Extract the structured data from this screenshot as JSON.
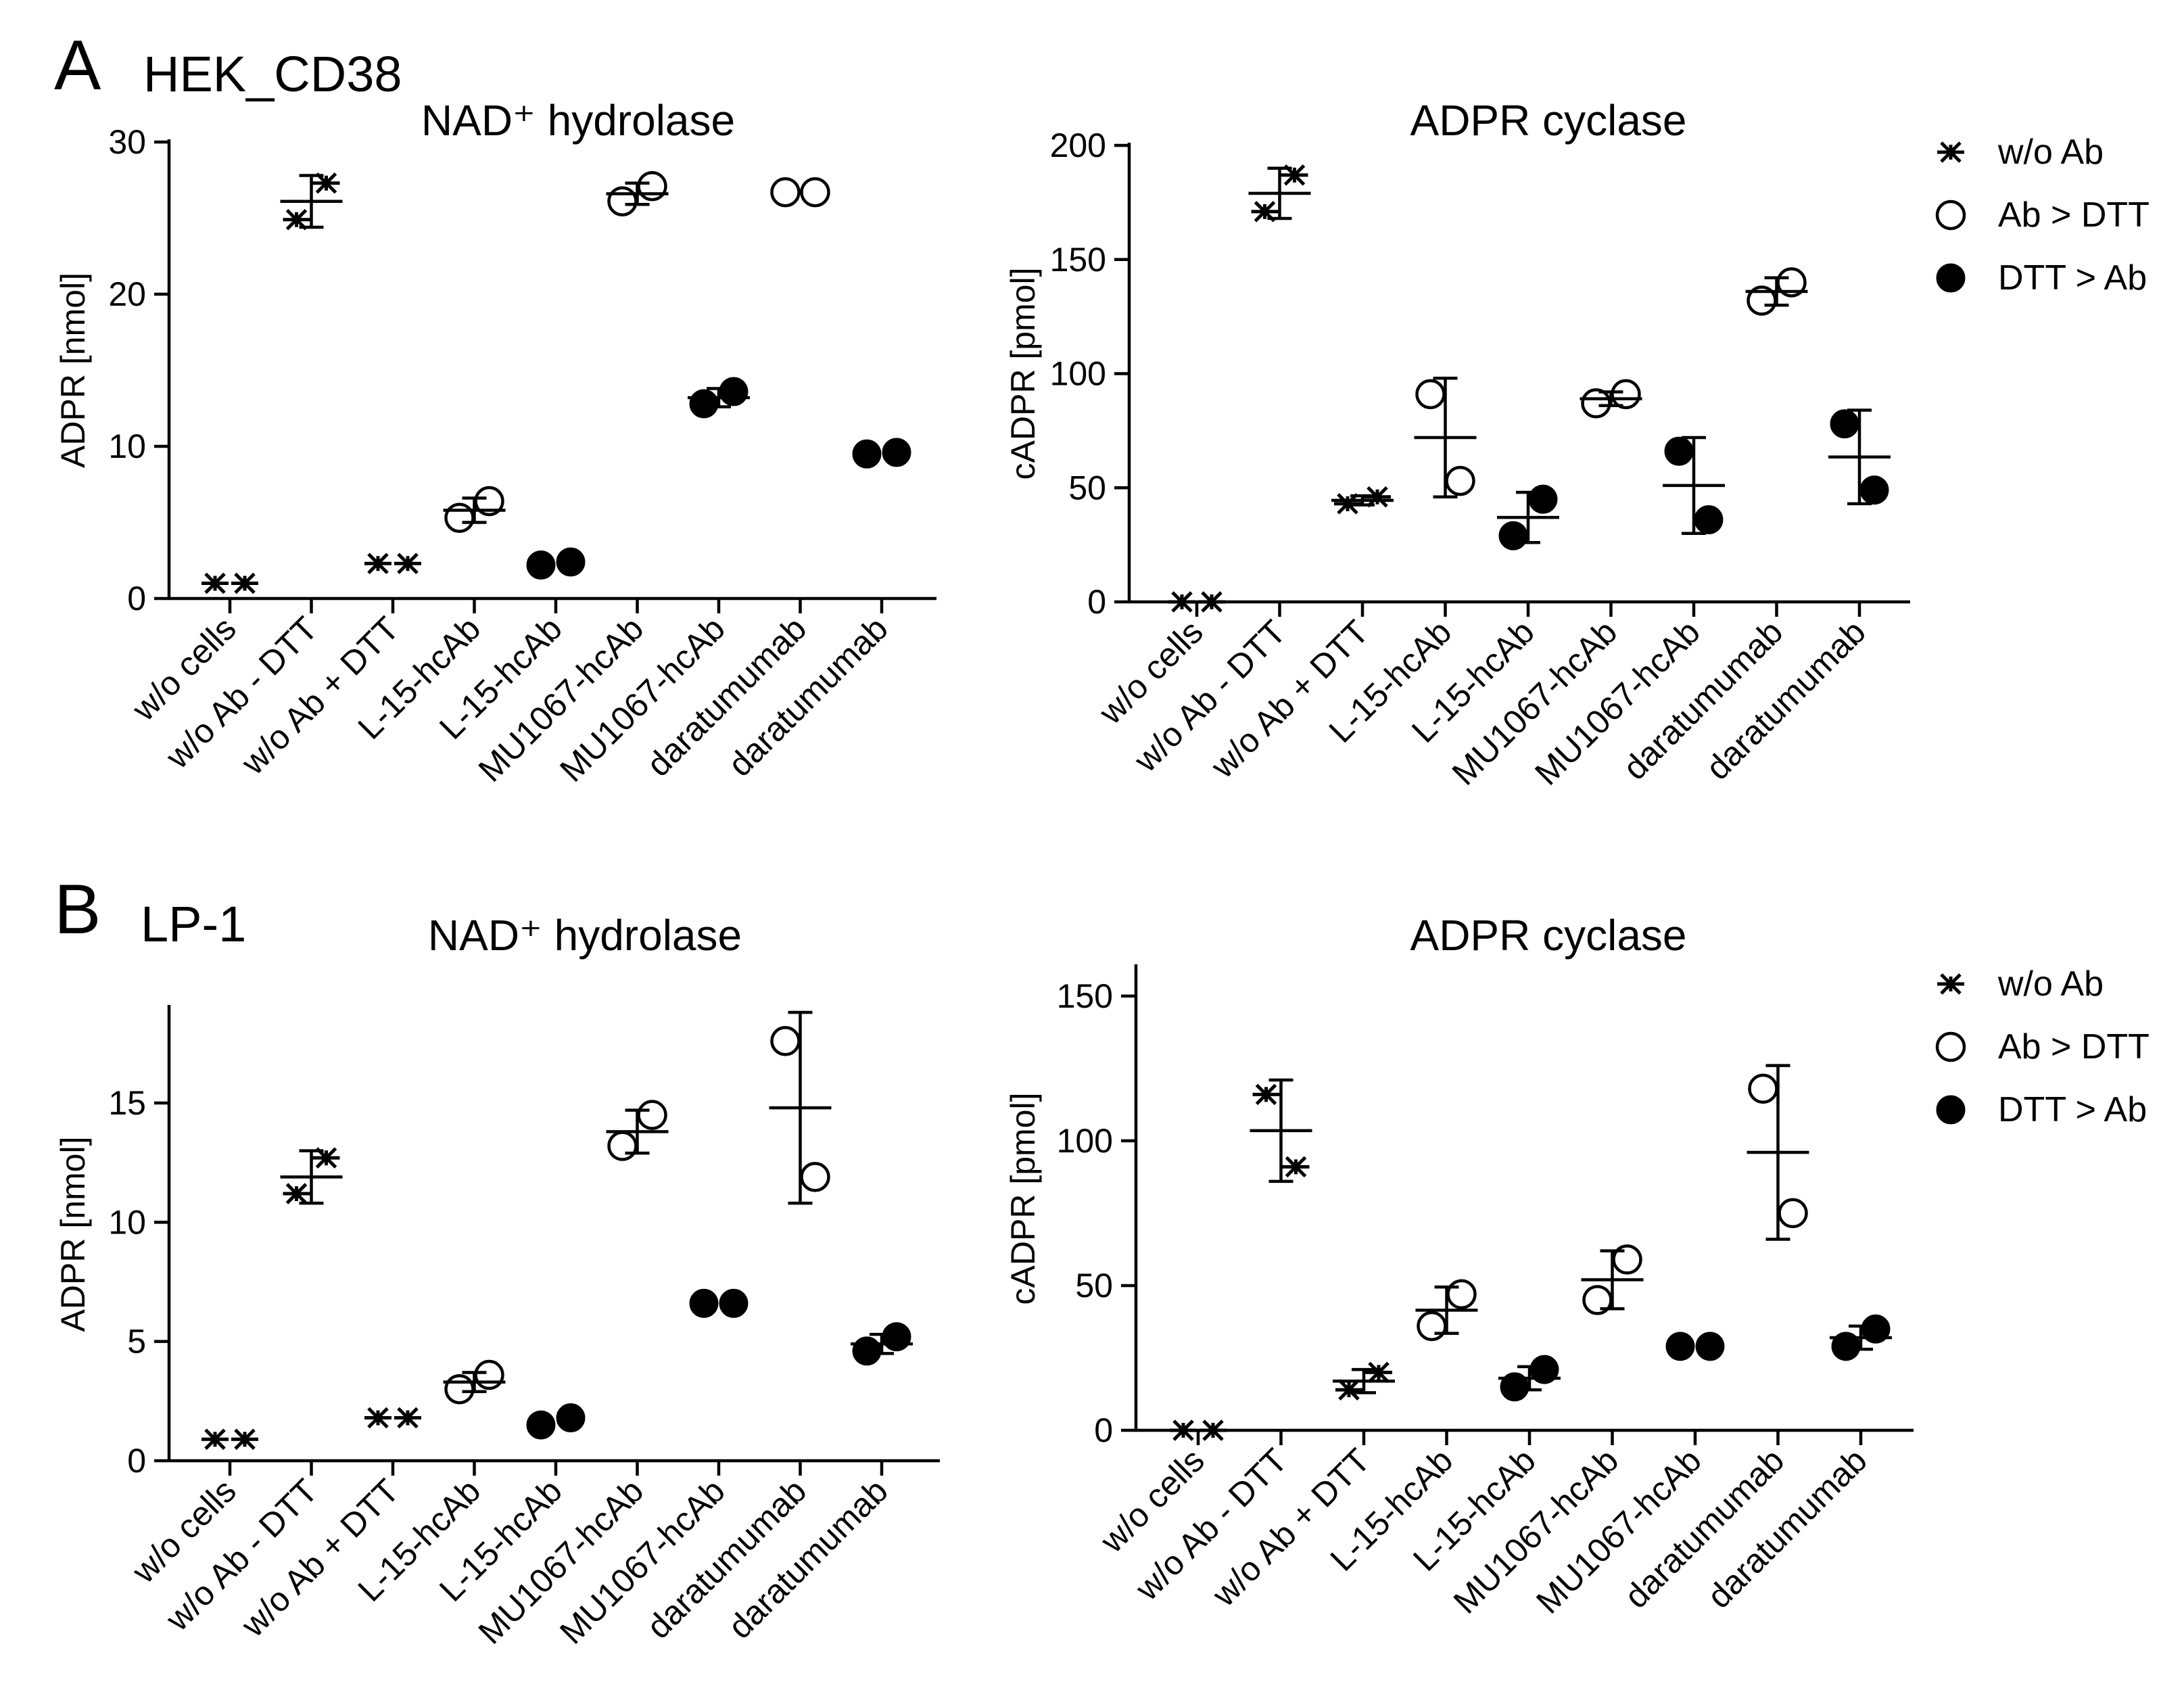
{
  "figure": {
    "panels": [
      {
        "letter": "A",
        "subtitle": "HEK_CD38"
      },
      {
        "letter": "B",
        "subtitle": "LP-1"
      }
    ]
  },
  "legend": [
    {
      "label": "w/o Ab",
      "marker": "star"
    },
    {
      "label": "Ab > DTT",
      "marker": "open"
    },
    {
      "label": "DTT > Ab",
      "marker": "filled"
    }
  ],
  "chart_data": [
    {
      "panel": "A",
      "type": "scatter",
      "title": "NAD⁺ hydrolase",
      "ylabel": "ADPR [nmol]",
      "xlabel": "",
      "ylim": [
        0,
        30
      ],
      "yticks": [
        0,
        10,
        20,
        30
      ],
      "categories": [
        "w/o cells",
        "w/o Ab - DTT",
        "w/o Ab + DTT",
        "L-15-hcAb",
        "L-15-hcAb",
        "MU1067-hcAb",
        "MU1067-hcAb",
        "daratumumab",
        "daratumumab"
      ],
      "groups": [
        {
          "marker": "star",
          "points": [
            1.0,
            1.0
          ],
          "mean": null,
          "sd": null
        },
        {
          "marker": "star",
          "points": [
            24.9,
            27.3
          ],
          "mean": 26.1,
          "sd": 1.7
        },
        {
          "marker": "star",
          "points": [
            2.3,
            2.3
          ],
          "mean": null,
          "sd": null
        },
        {
          "marker": "open",
          "points": [
            5.3,
            6.4
          ],
          "mean": 5.8,
          "sd": 0.8
        },
        {
          "marker": "filled",
          "points": [
            2.2,
            2.4
          ],
          "mean": null,
          "sd": null
        },
        {
          "marker": "open",
          "points": [
            26.1,
            27.1
          ],
          "mean": 26.6,
          "sd": 0.7
        },
        {
          "marker": "filled",
          "points": [
            12.8,
            13.6
          ],
          "mean": 13.2,
          "sd": 0.6
        },
        {
          "marker": "open",
          "points": [
            26.7,
            26.7
          ],
          "mean": null,
          "sd": null
        },
        {
          "marker": "filled",
          "points": [
            9.5,
            9.6
          ],
          "mean": null,
          "sd": null
        }
      ]
    },
    {
      "panel": "A",
      "type": "scatter",
      "title": "ADPR cyclase",
      "ylabel": "cADPR [pmol]",
      "xlabel": "",
      "ylim": [
        0,
        200
      ],
      "yticks": [
        0,
        50,
        100,
        150,
        200
      ],
      "categories": [
        "w/o cells",
        "w/o Ab - DTT",
        "w/o Ab + DTT",
        "L-15-hcAb",
        "L-15-hcAb",
        "MU1067-hcAb",
        "MU1067-hcAb",
        "daratumumab",
        "daratumumab"
      ],
      "groups": [
        {
          "marker": "star",
          "points": [
            0,
            0
          ],
          "mean": null,
          "sd": null
        },
        {
          "marker": "star",
          "points": [
            171,
            187
          ],
          "mean": 179,
          "sd": 11
        },
        {
          "marker": "star",
          "points": [
            43,
            46
          ],
          "mean": 44.5,
          "sd": 2
        },
        {
          "marker": "open",
          "points": [
            91,
            53
          ],
          "mean": 72,
          "sd": 26
        },
        {
          "marker": "filled",
          "points": [
            29,
            45
          ],
          "mean": 37,
          "sd": 11
        },
        {
          "marker": "open",
          "points": [
            87,
            91
          ],
          "mean": 89,
          "sd": 3
        },
        {
          "marker": "filled",
          "points": [
            66,
            36
          ],
          "mean": 51,
          "sd": 21
        },
        {
          "marker": "open",
          "points": [
            132,
            140
          ],
          "mean": 136,
          "sd": 6
        },
        {
          "marker": "filled",
          "points": [
            78,
            49
          ],
          "mean": 63.5,
          "sd": 20.5
        }
      ]
    },
    {
      "panel": "B",
      "type": "scatter",
      "title": "NAD⁺ hydrolase",
      "ylabel": "ADPR [nmol]",
      "xlabel": "",
      "ylim": [
        0,
        19
      ],
      "yticks": [
        0,
        5,
        10,
        15
      ],
      "categories": [
        "w/o cells",
        "w/o Ab - DTT",
        "w/o Ab + DTT",
        "L-15-hcAb",
        "L-15-hcAb",
        "MU1067-hcAb",
        "MU1067-hcAb",
        "daratumumab",
        "daratumumab"
      ],
      "groups": [
        {
          "marker": "star",
          "points": [
            0.9,
            0.9
          ],
          "mean": null,
          "sd": null
        },
        {
          "marker": "star",
          "points": [
            11.2,
            12.7
          ],
          "mean": 11.9,
          "sd": 1.1
        },
        {
          "marker": "star",
          "points": [
            1.8,
            1.8
          ],
          "mean": null,
          "sd": null
        },
        {
          "marker": "open",
          "points": [
            3.0,
            3.6
          ],
          "mean": 3.3,
          "sd": 0.4
        },
        {
          "marker": "filled",
          "points": [
            1.5,
            1.8
          ],
          "mean": null,
          "sd": null
        },
        {
          "marker": "open",
          "points": [
            13.2,
            14.5
          ],
          "mean": 13.8,
          "sd": 0.9
        },
        {
          "marker": "filled",
          "points": [
            6.6,
            6.6
          ],
          "mean": null,
          "sd": null
        },
        {
          "marker": "open",
          "points": [
            17.6,
            11.9
          ],
          "mean": 14.8,
          "sd": 4.0
        },
        {
          "marker": "filled",
          "points": [
            4.6,
            5.2
          ],
          "mean": 4.9,
          "sd": 0.4
        }
      ]
    },
    {
      "panel": "B",
      "type": "scatter",
      "title": "ADPR cyclase",
      "ylabel": "cADPR [pmol]",
      "xlabel": "",
      "ylim": [
        0,
        160
      ],
      "yticks": [
        0,
        50,
        100,
        150
      ],
      "categories": [
        "w/o cells",
        "w/o Ab - DTT",
        "w/o Ab + DTT",
        "L-15-hcAb",
        "L-15-hcAb",
        "MU1067-hcAb",
        "MU1067-hcAb",
        "daratumumab",
        "daratumumab"
      ],
      "groups": [
        {
          "marker": "star",
          "points": [
            0,
            0
          ],
          "mean": null,
          "sd": null
        },
        {
          "marker": "star",
          "points": [
            116,
            91
          ],
          "mean": 103.5,
          "sd": 17.5
        },
        {
          "marker": "star",
          "points": [
            14,
            20
          ],
          "mean": 17,
          "sd": 4
        },
        {
          "marker": "open",
          "points": [
            36,
            47
          ],
          "mean": 41.5,
          "sd": 8
        },
        {
          "marker": "filled",
          "points": [
            15,
            21
          ],
          "mean": 18,
          "sd": 4
        },
        {
          "marker": "open",
          "points": [
            45,
            59
          ],
          "mean": 52,
          "sd": 10
        },
        {
          "marker": "filled",
          "points": [
            29,
            29
          ],
          "mean": null,
          "sd": null
        },
        {
          "marker": "open",
          "points": [
            118,
            75
          ],
          "mean": 96,
          "sd": 30
        },
        {
          "marker": "filled",
          "points": [
            29,
            35
          ],
          "mean": 32,
          "sd": 4
        }
      ]
    }
  ]
}
